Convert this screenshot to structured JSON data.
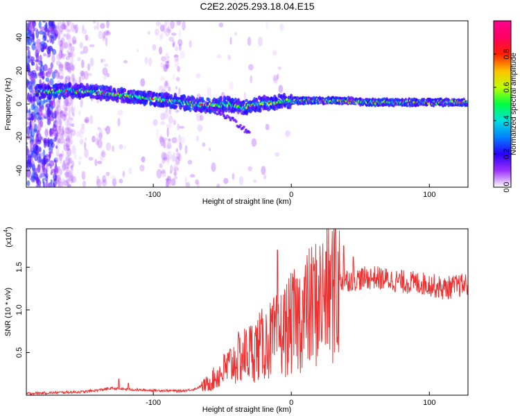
{
  "title": "C2E2.2025.293.18.04.E15",
  "chart_data": [
    {
      "type": "heatmap",
      "name": "spectrogram",
      "xlabel": "Height of straight line (km)",
      "ylabel": "Frequency (Hz)",
      "xlim": [
        -192,
        128
      ],
      "ylim": [
        -50,
        50
      ],
      "xticks": [
        -100,
        0,
        100
      ],
      "yticks": [
        -40,
        -20,
        0,
        20,
        40
      ],
      "colorbar": {
        "label": "Normalized spectral amplitude",
        "range": [
          0,
          1
        ],
        "ticks": [
          0.0,
          0.2,
          0.4,
          0.6,
          0.8
        ],
        "stops": [
          "#ffffff",
          "#9b30ff",
          "#2a00ff",
          "#0080ff",
          "#00e0e0",
          "#00ff40",
          "#c0ff00",
          "#ffc000",
          "#ff2000",
          "#ff0060",
          "#ff0090"
        ]
      },
      "ridge": {
        "x": [
          -185,
          -160,
          -140,
          -120,
          -100,
          -80,
          -60,
          -45,
          -35,
          -25,
          -10,
          0,
          20,
          40,
          60,
          80,
          100,
          128
        ],
        "freq": [
          7,
          8,
          7,
          5,
          3,
          1,
          -1,
          0,
          -2,
          0,
          1,
          2,
          2,
          2,
          1,
          1,
          1,
          1
        ]
      },
      "branch": {
        "x": [
          -60,
          -50,
          -42,
          -36,
          -30
        ],
        "freq": [
          -2,
          -6,
          -10,
          -14,
          -18
        ]
      }
    },
    {
      "type": "line",
      "name": "snr",
      "xlabel": "Height of straight line (km)",
      "ylabel": "SNR (10 * v/v)",
      "multiplier": "(x10",
      "multiplier_exp": "4",
      "xlim": [
        -192,
        128
      ],
      "ylim": [
        0,
        1.95
      ],
      "xticks": [
        -100,
        0,
        100
      ],
      "yticks": [
        0.5,
        1.0,
        1.5
      ],
      "ytick_labels": [
        "0.5",
        "1.0",
        "1.5"
      ],
      "color": "#ee3030",
      "envelope": {
        "x": [
          -192,
          -150,
          -130,
          -110,
          -80,
          -70,
          -60,
          -50,
          -40,
          -30,
          -20,
          -10,
          0,
          10,
          20,
          30,
          40,
          60,
          80,
          100,
          110,
          128
        ],
        "y": [
          0.02,
          0.04,
          0.08,
          0.06,
          0.05,
          0.07,
          0.15,
          0.3,
          0.45,
          0.55,
          0.65,
          0.75,
          0.9,
          1.05,
          1.2,
          1.32,
          1.35,
          1.38,
          1.33,
          1.3,
          1.25,
          1.3
        ]
      },
      "peaks": [
        {
          "x": -125,
          "y": 0.19
        },
        {
          "x": -118,
          "y": 0.14
        },
        {
          "x": -10,
          "y": 1.7
        },
        {
          "x": 25,
          "y": 1.68
        },
        {
          "x": 32,
          "y": 1.95
        },
        {
          "x": 38,
          "y": 1.75
        },
        {
          "x": 45,
          "y": 1.62
        }
      ]
    }
  ]
}
